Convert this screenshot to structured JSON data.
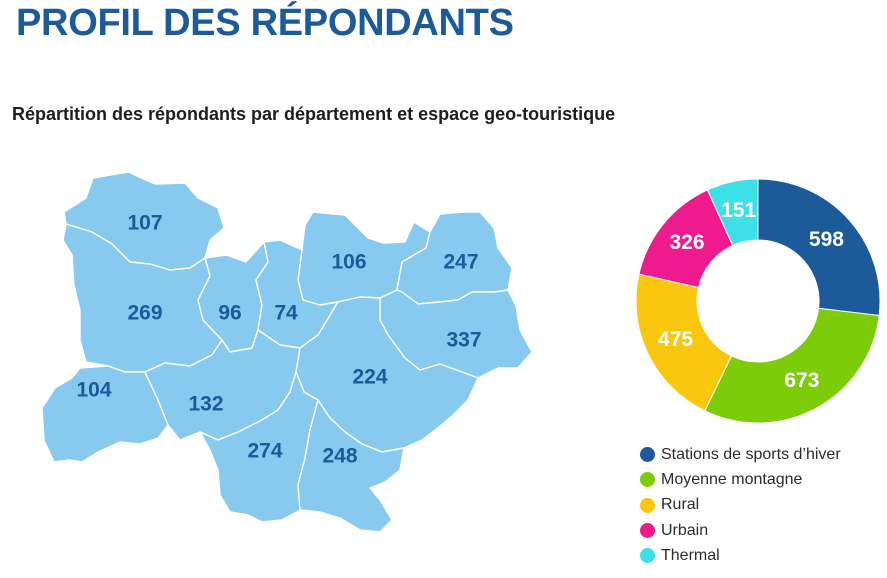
{
  "title": "PROFIL DES RÉPONDANTS",
  "subtitle": "Répartition des répondants par département et espace geo-touristique",
  "map": {
    "fill_color": "#87c9ef",
    "border_color": "#ffffff",
    "label_color": "#1c5a9a",
    "departments": [
      {
        "value": "107"
      },
      {
        "value": "106"
      },
      {
        "value": "247"
      },
      {
        "value": "269"
      },
      {
        "value": "96"
      },
      {
        "value": "74"
      },
      {
        "value": "337"
      },
      {
        "value": "104"
      },
      {
        "value": "132"
      },
      {
        "value": "224"
      },
      {
        "value": "274"
      },
      {
        "value": "248"
      }
    ]
  },
  "chart_data": {
    "type": "pie",
    "donut": true,
    "title": "",
    "slices": [
      {
        "label": "Stations de sports d’hiver",
        "value": 598,
        "color": "#1c5a9a"
      },
      {
        "label": "Moyenne montagne",
        "value": 673,
        "color": "#7ccc0a"
      },
      {
        "label": "Rural",
        "value": 475,
        "color": "#f9c80e"
      },
      {
        "label": "Urbain",
        "value": 326,
        "color": "#ef1b8e"
      },
      {
        "label": "Thermal",
        "value": 151,
        "color": "#3de0e6"
      }
    ],
    "legend_position": "bottom"
  }
}
